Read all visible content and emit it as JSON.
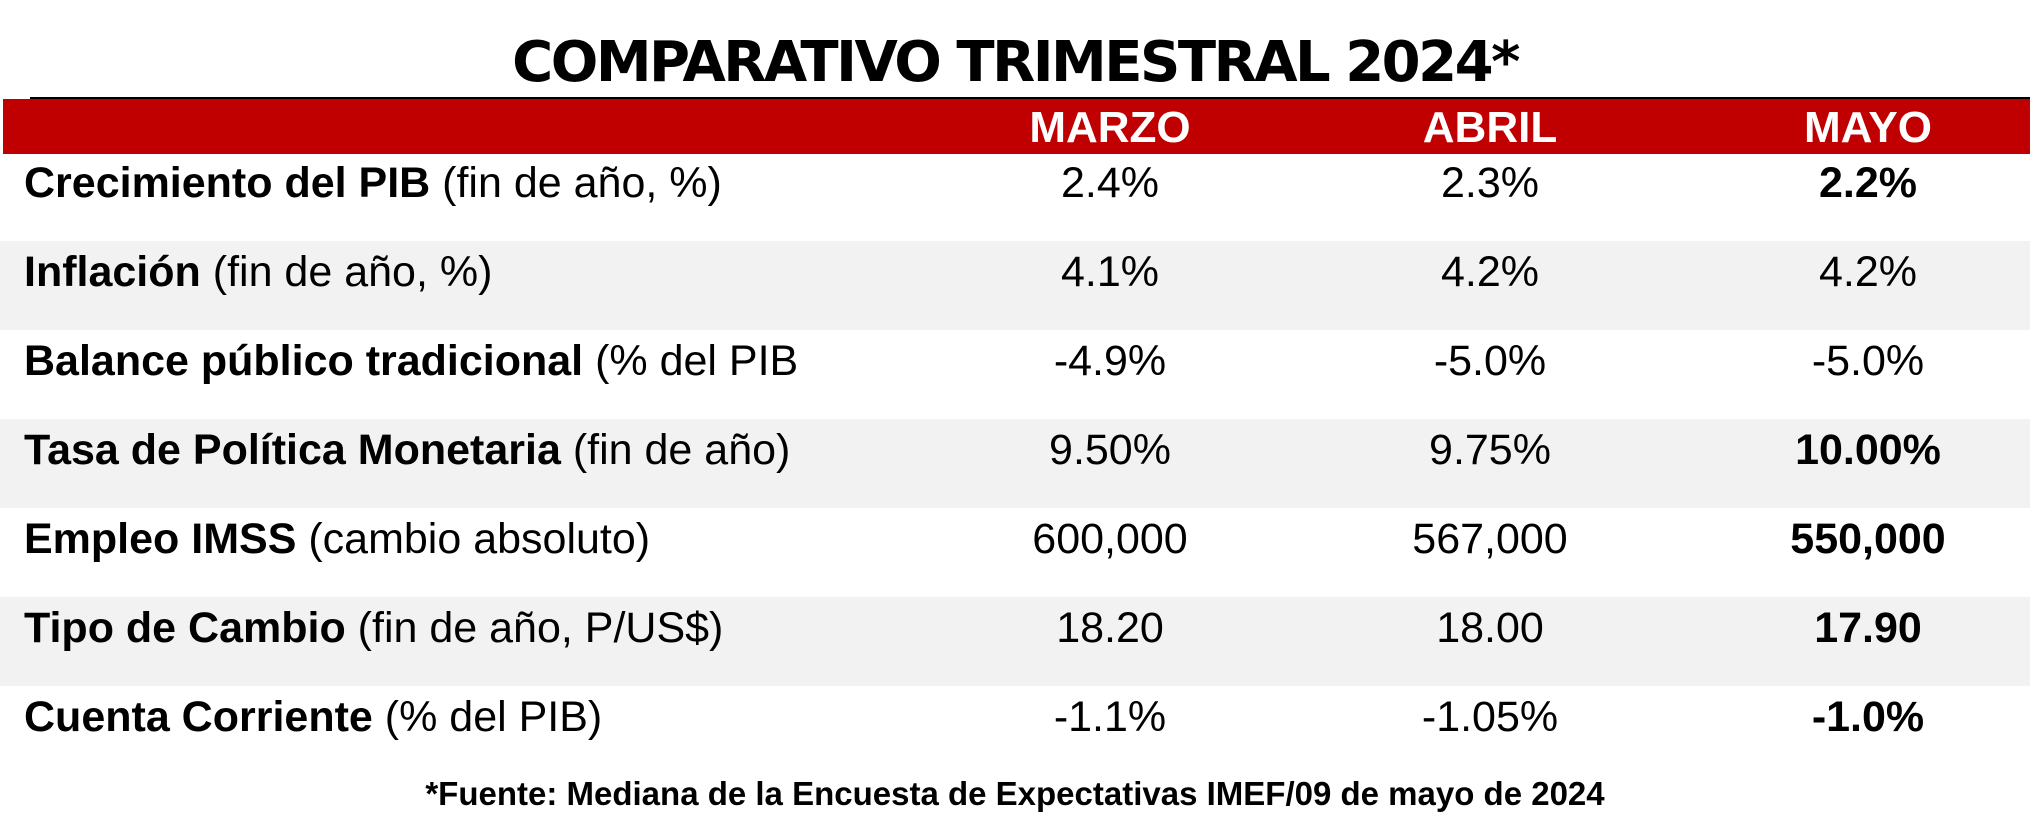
{
  "title": "COMPARATIVO TRIMESTRAL 2024*",
  "columns": [
    "MARZO",
    "ABRIL",
    "MAYO"
  ],
  "rows": [
    {
      "label_bold": "Crecimiento del PIB",
      "label_rest": " (fin de año, %)",
      "values": [
        "2.4%",
        "2.3%",
        "2.2%"
      ],
      "bold_last": true
    },
    {
      "label_bold": "Inflación",
      "label_rest": " (fin de año, %)",
      "values": [
        "4.1%",
        "4.2%",
        "4.2%"
      ],
      "bold_last": false
    },
    {
      "label_bold": "Balance público tradicional",
      "label_rest": " (% del PIB",
      "values": [
        "-4.9%",
        "-5.0%",
        "-5.0%"
      ],
      "bold_last": false
    },
    {
      "label_bold": "Tasa de Política Monetaria",
      "label_rest": " (fin de año)",
      "values": [
        "9.50%",
        "9.75%",
        "10.00%"
      ],
      "bold_last": true
    },
    {
      "label_bold": "Empleo IMSS",
      "label_rest": " (cambio absoluto)",
      "values": [
        "600,000",
        "567,000",
        "550,000"
      ],
      "bold_last": true
    },
    {
      "label_bold": "Tipo de Cambio",
      "label_rest": " (fin de año, P/US$)",
      "values": [
        "18.20",
        "18.00",
        "17.90"
      ],
      "bold_last": true
    },
    {
      "label_bold": "Cuenta Corriente",
      "label_rest": " (% del PIB)",
      "values": [
        "-1.1%",
        "-1.05%",
        "-1.0%"
      ],
      "bold_last": true
    }
  ],
  "footnote": "*Fuente: Mediana de la Encuesta de Expectativas IMEF/09 de mayo de 2024",
  "colors": {
    "header_red": "#c00000",
    "shaded_row": "#f2f2f2",
    "header_text": "#ffffff"
  }
}
